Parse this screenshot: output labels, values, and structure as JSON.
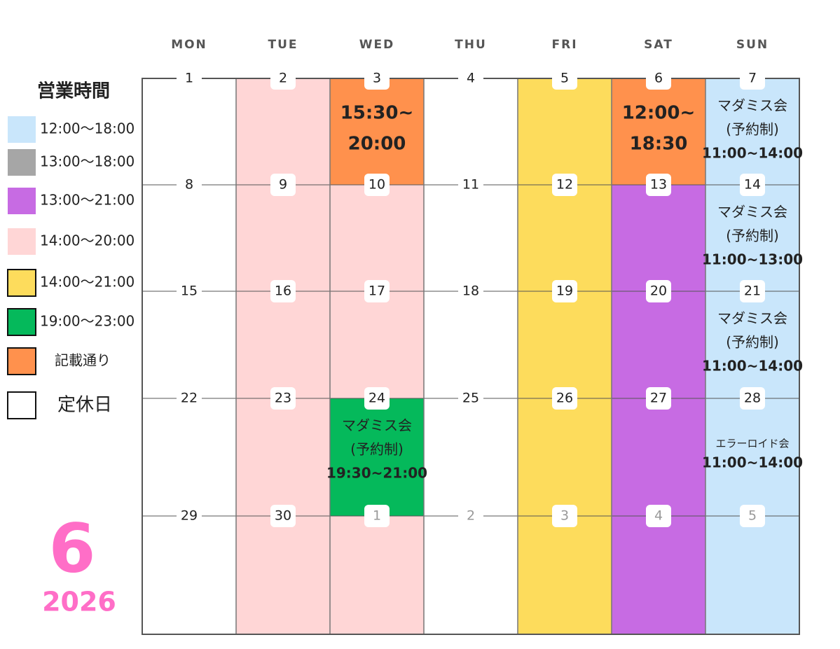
{
  "legend": {
    "title": "営業時間",
    "items": [
      {
        "label": "12:00～18:00",
        "color": "#c9e6fb"
      },
      {
        "label": "13:00～18:00",
        "color": "#a6a6a6"
      },
      {
        "label": "13:00～21:00",
        "color": "#c76be3"
      },
      {
        "label": "14:00～20:00",
        "color": "#ffd6d6"
      },
      {
        "label": "14:00～21:00",
        "color": "#fddc5c"
      },
      {
        "label": "19:00～23:00",
        "color": "#05b95b"
      },
      {
        "label": "記載通り",
        "color": "#ff914d"
      },
      {
        "label": "定休日",
        "color": "#ffffff"
      }
    ]
  },
  "month": "6",
  "year": "2026",
  "weekdays": [
    "MON",
    "TUE",
    "WED",
    "THU",
    "FRI",
    "SAT",
    "SUN"
  ],
  "weeks": [
    [
      {
        "day": 1
      },
      {
        "day": 2
      },
      {
        "day": 3,
        "lines": [
          "15:30~",
          "20:00"
        ]
      },
      {
        "day": 4
      },
      {
        "day": 5
      },
      {
        "day": 6,
        "lines": [
          "12:00~",
          "18:30"
        ]
      },
      {
        "day": 7,
        "lines": [
          "マダミス会",
          "(予約制)",
          "11:00~14:00"
        ]
      }
    ],
    [
      {
        "day": 8
      },
      {
        "day": 9
      },
      {
        "day": 10
      },
      {
        "day": 11
      },
      {
        "day": 12
      },
      {
        "day": 13
      },
      {
        "day": 14,
        "lines": [
          "マダミス会",
          "(予約制)",
          "11:00~13:00"
        ]
      }
    ],
    [
      {
        "day": 15
      },
      {
        "day": 16
      },
      {
        "day": 17
      },
      {
        "day": 18
      },
      {
        "day": 19
      },
      {
        "day": 20
      },
      {
        "day": 21,
        "lines": [
          "マダミス会",
          "(予約制)",
          "11:00~14:00"
        ]
      }
    ],
    [
      {
        "day": 22
      },
      {
        "day": 23
      },
      {
        "day": 24,
        "lines": [
          "マダミス会",
          "(予約制)",
          "19:30~21:00"
        ]
      },
      {
        "day": 25
      },
      {
        "day": 26
      },
      {
        "day": 27
      },
      {
        "day": 28,
        "lines": [
          "エラーロイド会",
          "11:00~14:00"
        ]
      }
    ],
    [
      {
        "day": 29
      },
      {
        "day": 30
      },
      {
        "day": 1
      },
      {
        "day": 2
      },
      {
        "day": 3
      },
      {
        "day": 4
      },
      {
        "day": 5
      }
    ]
  ]
}
